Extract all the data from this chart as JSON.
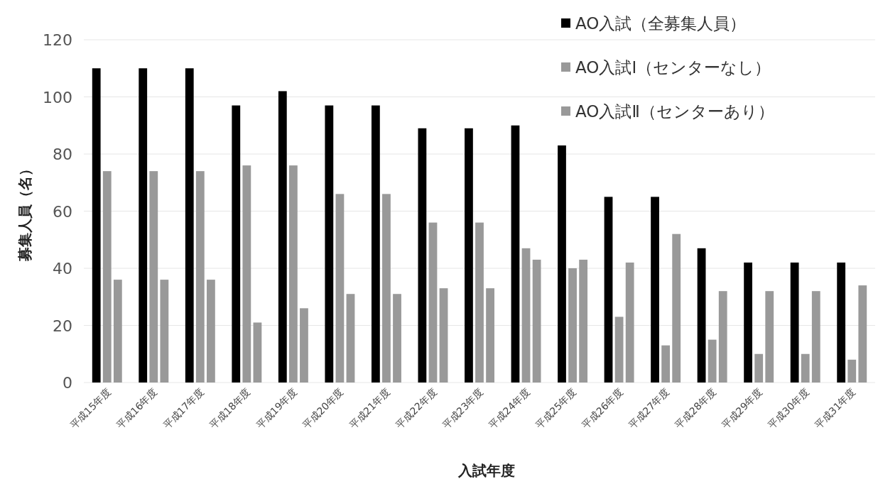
{
  "chart_data": {
    "type": "bar",
    "xlabel": "入試年度",
    "ylabel": "募集人員（名）",
    "categories": [
      "平成15年度",
      "平成16年度",
      "平成17年度",
      "平成18年度",
      "平成19年度",
      "平成20年度",
      "平成21年度",
      "平成22年度",
      "平成23年度",
      "平成24年度",
      "平成25年度",
      "平成26年度",
      "平成27年度",
      "平成28年度",
      "平成29年度",
      "平成30年度",
      "平成31年度"
    ],
    "series": [
      {
        "name": "AO入試（全募集人員）",
        "color": "#000000",
        "values": [
          110,
          110,
          110,
          97,
          102,
          97,
          97,
          89,
          89,
          90,
          83,
          65,
          65,
          47,
          42,
          42,
          42
        ]
      },
      {
        "name": "AO入試Ⅰ（センターなし）",
        "color": "#999999",
        "values": [
          74,
          74,
          74,
          76,
          76,
          66,
          66,
          56,
          56,
          47,
          40,
          23,
          13,
          15,
          10,
          10,
          8
        ]
      },
      {
        "name": "AO入試Ⅱ（センターあり）",
        "color": "#999999",
        "values": [
          36,
          36,
          36,
          21,
          26,
          31,
          31,
          33,
          33,
          43,
          43,
          42,
          52,
          32,
          32,
          32,
          34
        ]
      }
    ],
    "ylim": [
      0,
      120
    ],
    "yticks": [
      0,
      20,
      40,
      60,
      80,
      100,
      120
    ],
    "grid": "y",
    "legend": "top right"
  }
}
